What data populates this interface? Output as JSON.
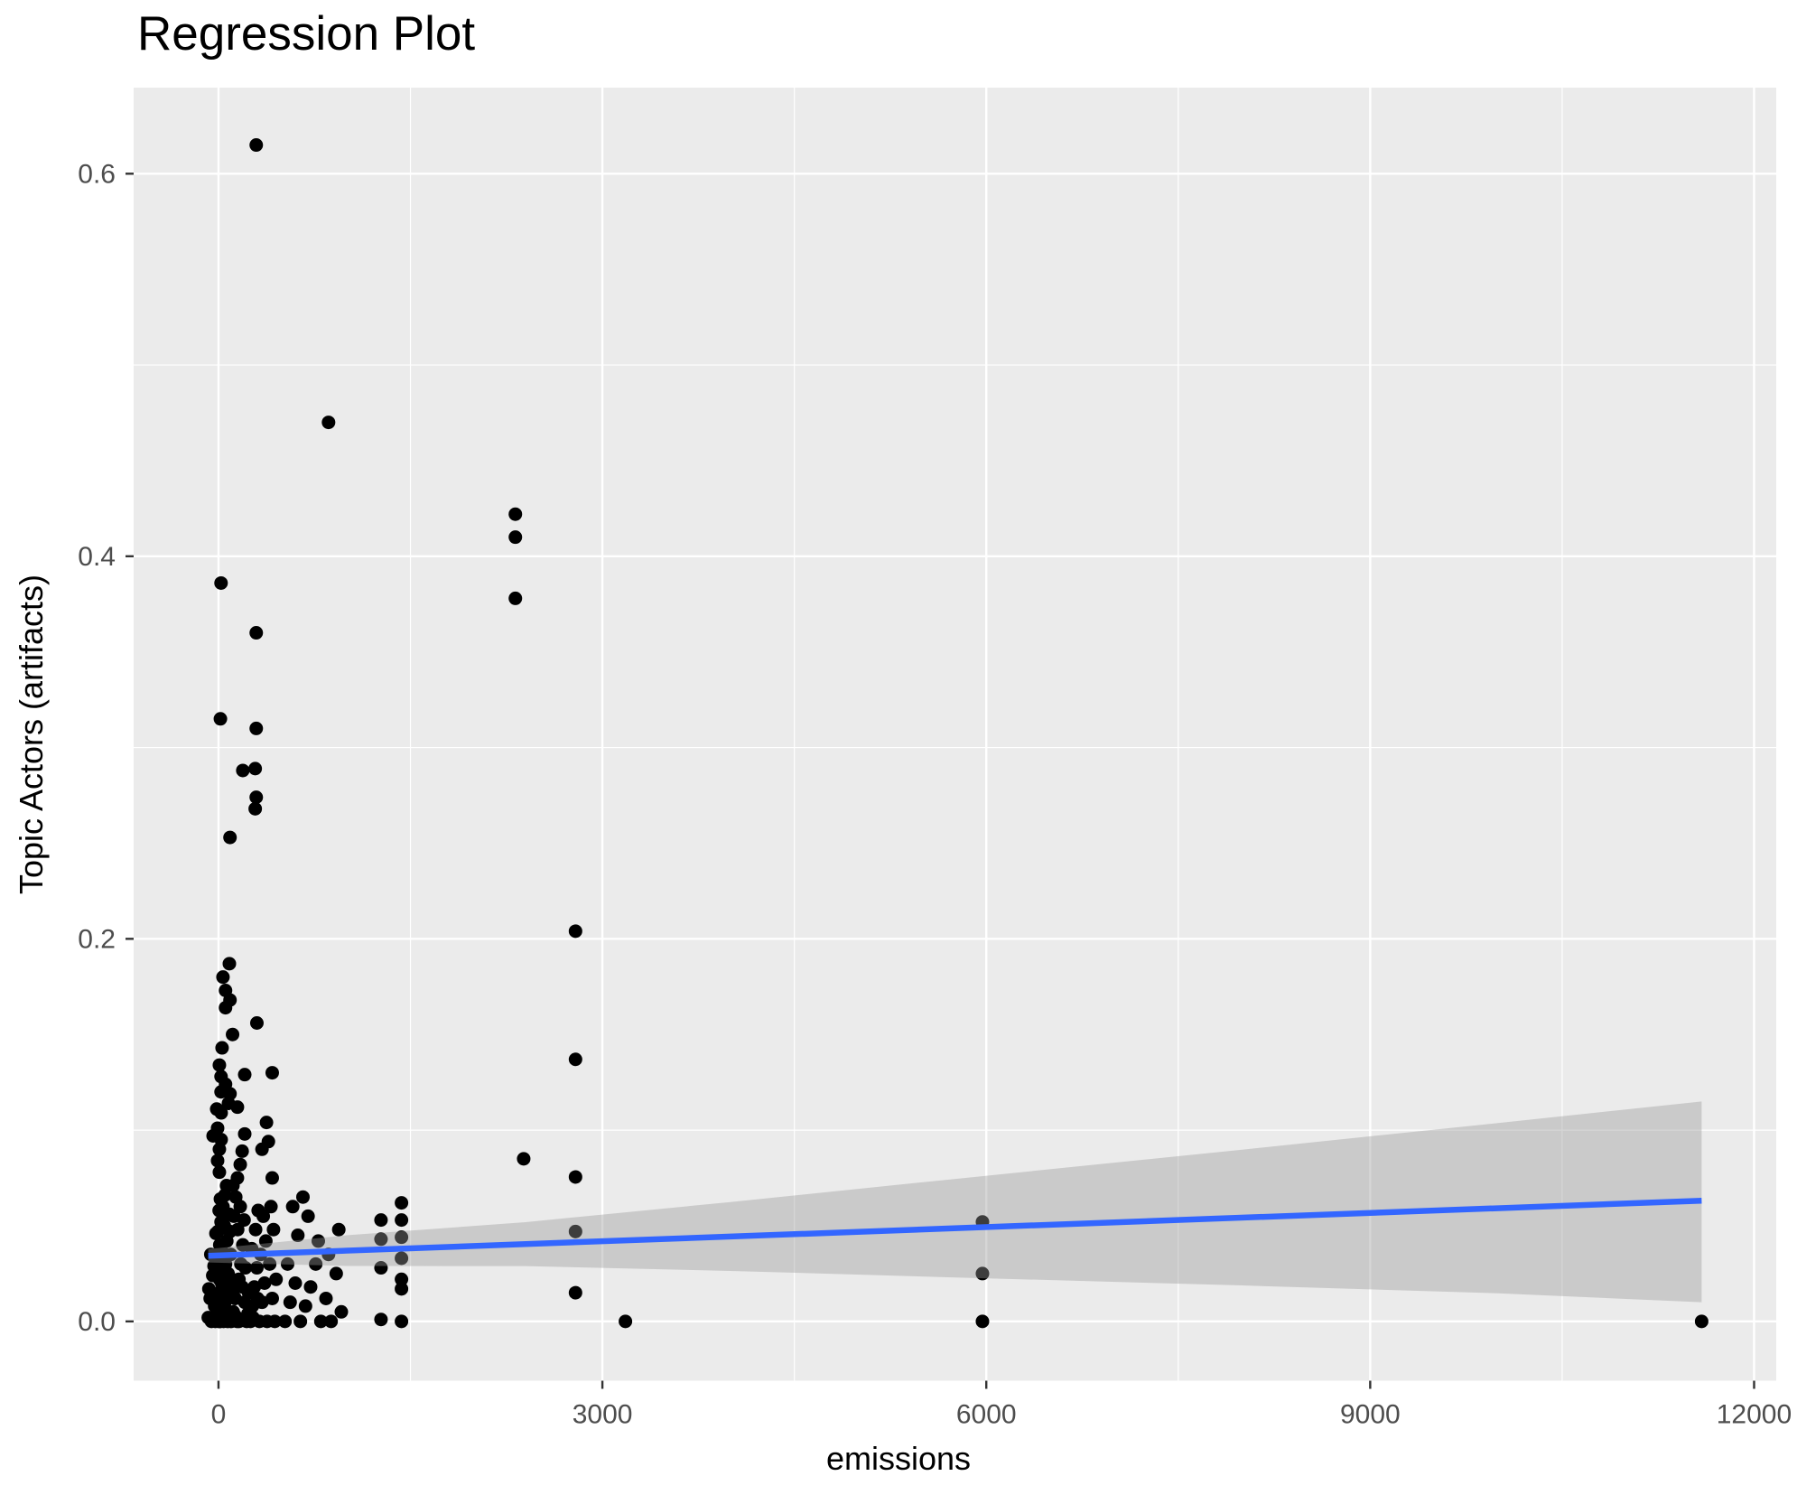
{
  "title": "Regression Plot",
  "axes": {
    "x": {
      "label": "emissions",
      "tick_labels": [
        "0",
        "3000",
        "6000",
        "9000",
        "12000"
      ]
    },
    "y": {
      "label": "Topic Actors (artifacts)",
      "tick_labels": [
        "0.0",
        "0.2",
        "0.4",
        "0.6"
      ]
    }
  },
  "colors": {
    "panel_background": "#EBEBEB",
    "gridline": "#FFFFFF",
    "point": "#000000",
    "regression_line": "#3366FF",
    "ci_band": "rgba(153,153,153,0.4)",
    "tick_text": "#4D4D4D",
    "tick_mark": "#333333"
  },
  "chart_data": {
    "type": "scatter",
    "title": "Regression Plot",
    "xlabel": "emissions",
    "ylabel": "Topic Actors (artifacts)",
    "xlim": [
      -663,
      12173
    ],
    "ylim": [
      -0.031,
      0.645
    ],
    "x_major_ticks": [
      0,
      3000,
      6000,
      9000,
      12000
    ],
    "y_major_ticks": [
      0.0,
      0.2,
      0.4,
      0.6
    ],
    "x_minor_gridlines": [
      1500,
      4500,
      7500,
      10500
    ],
    "y_minor_gridlines": [
      0.1,
      0.3,
      0.5
    ],
    "grid": true,
    "legend": false,
    "regression_line": {
      "x1": -80,
      "y1": 0.0343,
      "x2": 11590,
      "y2": 0.0631
    },
    "ci_band": [
      {
        "x": -80,
        "top": 0.0378,
        "bottom": 0.0308
      },
      {
        "x": 1000,
        "top": 0.045,
        "bottom": 0.029
      },
      {
        "x": 2400,
        "top": 0.0519,
        "bottom": 0.0289
      },
      {
        "x": 4000,
        "top": 0.0624,
        "bottom": 0.0264
      },
      {
        "x": 5700,
        "top": 0.0741,
        "bottom": 0.0231
      },
      {
        "x": 8000,
        "top": 0.0898,
        "bottom": 0.0188
      },
      {
        "x": 10000,
        "top": 0.1037,
        "bottom": 0.0147
      },
      {
        "x": 11590,
        "top": 0.115,
        "bottom": 0.01
      }
    ],
    "points": [
      [
        295,
        0.615
      ],
      [
        860,
        0.47
      ],
      [
        20,
        0.386
      ],
      [
        295,
        0.36
      ],
      [
        15,
        0.315
      ],
      [
        295,
        0.31
      ],
      [
        287,
        0.289
      ],
      [
        190,
        0.288
      ],
      [
        295,
        0.274
      ],
      [
        287,
        0.268
      ],
      [
        90,
        0.253
      ],
      [
        2320,
        0.422
      ],
      [
        2320,
        0.41
      ],
      [
        2320,
        0.378
      ],
      [
        2385,
        0.085
      ],
      [
        2790,
        0.204
      ],
      [
        2790,
        0.137
      ],
      [
        2790,
        0.0755
      ],
      [
        2790,
        0.047
      ],
      [
        2790,
        0.015
      ],
      [
        3180,
        0.0
      ],
      [
        5970,
        0.052
      ],
      [
        5970,
        0.025
      ],
      [
        5970,
        0.0
      ],
      [
        11590,
        0.0
      ],
      [
        1430,
        0.062
      ],
      [
        1270,
        0.053
      ],
      [
        1430,
        0.053
      ],
      [
        1270,
        0.043
      ],
      [
        1430,
        0.044
      ],
      [
        1430,
        0.033
      ],
      [
        1270,
        0.028
      ],
      [
        1430,
        0.022
      ],
      [
        1430,
        0.017
      ],
      [
        1270,
        0.001
      ],
      [
        1430,
        0.0
      ],
      [
        85,
        0.187
      ],
      [
        35,
        0.18
      ],
      [
        55,
        0.173
      ],
      [
        90,
        0.168
      ],
      [
        55,
        0.164
      ],
      [
        300,
        0.156
      ],
      [
        110,
        0.15
      ],
      [
        28,
        0.143
      ],
      [
        7,
        0.134
      ],
      [
        420,
        0.13
      ],
      [
        205,
        0.129
      ],
      [
        20,
        0.128
      ],
      [
        55,
        0.124
      ],
      [
        20,
        0.12
      ],
      [
        90,
        0.119
      ],
      [
        78,
        0.114
      ],
      [
        148,
        0.112
      ],
      [
        -14,
        0.111
      ],
      [
        21,
        0.109
      ],
      [
        375,
        0.104
      ],
      [
        -7,
        0.101
      ],
      [
        205,
        0.098
      ],
      [
        -42,
        0.097
      ],
      [
        390,
        0.094
      ],
      [
        21,
        0.095
      ],
      [
        340,
        0.09
      ],
      [
        7,
        0.09
      ],
      [
        185,
        0.089
      ],
      [
        -7,
        0.084
      ],
      [
        170,
        0.082
      ],
      [
        7,
        0.078
      ],
      [
        148,
        0.075
      ],
      [
        420,
        0.075
      ],
      [
        63,
        0.071
      ],
      [
        113,
        0.071
      ],
      [
        -80,
        0.002
      ],
      [
        -65,
        0.012
      ],
      [
        -55,
        0.0
      ],
      [
        -45,
        0.024
      ],
      [
        -60,
        0.035
      ],
      [
        -30,
        0.008
      ],
      [
        -20,
        0.046
      ],
      [
        -75,
        0.017
      ],
      [
        -35,
        0.029
      ],
      [
        -25,
        0.0
      ],
      [
        -10,
        0.005
      ],
      [
        0,
        0.0
      ],
      [
        5,
        0.015
      ],
      [
        10,
        0.033
      ],
      [
        15,
        0.0
      ],
      [
        20,
        0.01
      ],
      [
        25,
        0.02
      ],
      [
        0,
        0.027
      ],
      [
        10,
        0.04
      ],
      [
        20,
        0.052
      ],
      [
        5,
        0.058
      ],
      [
        15,
        0.064
      ],
      [
        -5,
        0.047
      ],
      [
        25,
        0.037
      ],
      [
        0,
        0.007
      ],
      [
        12,
        0.0
      ],
      [
        22,
        0.003
      ],
      [
        8,
        0.022
      ],
      [
        40,
        0.0
      ],
      [
        50,
        0.01
      ],
      [
        60,
        0.02
      ],
      [
        70,
        0.0
      ],
      [
        80,
        0.005
      ],
      [
        90,
        0.015
      ],
      [
        55,
        0.03
      ],
      [
        65,
        0.042
      ],
      [
        45,
        0.05
      ],
      [
        85,
        0.056
      ],
      [
        95,
        0.035
      ],
      [
        75,
        0.025
      ],
      [
        35,
        0.06
      ],
      [
        50,
        0.066
      ],
      [
        100,
        0.0
      ],
      [
        90,
        0.047
      ],
      [
        115,
        0.005
      ],
      [
        130,
        0.012
      ],
      [
        145,
        0.0
      ],
      [
        160,
        0.022
      ],
      [
        175,
        0.03
      ],
      [
        190,
        0.04
      ],
      [
        150,
        0.048
      ],
      [
        120,
        0.055
      ],
      [
        205,
        0.01
      ],
      [
        220,
        0.0
      ],
      [
        135,
        0.065
      ],
      [
        170,
        0.06
      ],
      [
        185,
        0.018
      ],
      [
        210,
        0.028
      ],
      [
        160,
        0.0
      ],
      [
        200,
        0.053
      ],
      [
        250,
        0.0
      ],
      [
        265,
        0.008
      ],
      [
        280,
        0.018
      ],
      [
        300,
        0.028
      ],
      [
        320,
        0.0
      ],
      [
        340,
        0.01
      ],
      [
        360,
        0.02
      ],
      [
        380,
        0.0
      ],
      [
        400,
        0.03
      ],
      [
        420,
        0.012
      ],
      [
        440,
        0.0
      ],
      [
        260,
        0.038
      ],
      [
        290,
        0.048
      ],
      [
        310,
        0.058
      ],
      [
        430,
        0.048
      ],
      [
        450,
        0.022
      ],
      [
        370,
        0.042
      ],
      [
        350,
        0.055
      ],
      [
        330,
        0.035
      ],
      [
        410,
        0.06
      ],
      [
        520,
        0.0
      ],
      [
        560,
        0.01
      ],
      [
        600,
        0.02
      ],
      [
        640,
        0.0
      ],
      [
        680,
        0.008
      ],
      [
        720,
        0.018
      ],
      [
        760,
        0.03
      ],
      [
        800,
        0.0
      ],
      [
        840,
        0.012
      ],
      [
        880,
        0.0
      ],
      [
        920,
        0.025
      ],
      [
        960,
        0.005
      ],
      [
        540,
        0.03
      ],
      [
        620,
        0.045
      ],
      [
        700,
        0.055
      ],
      [
        780,
        0.042
      ],
      [
        860,
        0.035
      ],
      [
        940,
        0.048
      ],
      [
        580,
        0.06
      ],
      [
        660,
        0.065
      ],
      [
        30,
        0.001
      ],
      [
        60,
        0.004
      ],
      [
        95,
        0.002
      ],
      [
        130,
        0.003
      ],
      [
        175,
        0.001
      ],
      [
        230,
        0.004
      ],
      [
        270,
        0.002
      ],
      [
        55,
        0.013
      ],
      [
        105,
        0.022
      ],
      [
        140,
        0.018
      ],
      [
        235,
        0.015
      ],
      [
        305,
        0.012
      ]
    ]
  }
}
